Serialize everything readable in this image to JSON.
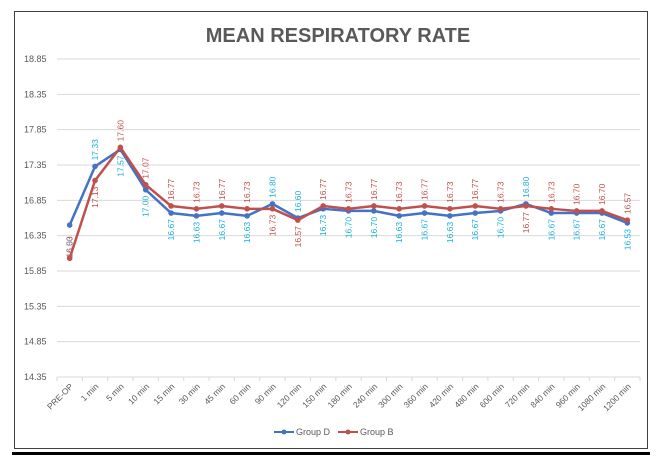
{
  "chart_data": {
    "type": "line",
    "title": "MEAN RESPIRATORY RATE",
    "xlabel": "",
    "ylabel": "",
    "categories": [
      "PRE-OP",
      "1 min",
      "5 min",
      "10 min",
      "15 min",
      "30 min",
      "45 min",
      "60 min",
      "90 min",
      "120 min",
      "150 min",
      "180 min",
      "240 min",
      "300 min",
      "360 min",
      "420 min",
      "480 min",
      "600 min",
      "720 min",
      "840 min",
      "960 min",
      "1080 min",
      "1200 min"
    ],
    "yticks": [
      "18.85",
      "18.35",
      "17.85",
      "17.35",
      "16.85",
      "16.35",
      "15.85",
      "15.35",
      "14.85",
      "14.35"
    ],
    "ylim": [
      14.35,
      18.85
    ],
    "grid": true,
    "legend_position": "bottom",
    "series": [
      {
        "name": "Group D",
        "color": "#4472C4",
        "label_color": "#1AAFD8",
        "values": [
          16.5,
          17.33,
          17.57,
          17.0,
          16.67,
          16.63,
          16.67,
          16.63,
          16.8,
          16.6,
          16.73,
          16.7,
          16.7,
          16.63,
          16.67,
          16.63,
          16.67,
          16.7,
          16.8,
          16.67,
          16.67,
          16.67,
          16.53
        ],
        "labels": [
          "16.50",
          "17.33",
          "17.57",
          "17.00",
          "16.67",
          "16.63",
          "16.67",
          "16.63",
          "16.80",
          "16.60",
          "16.73",
          "16.70",
          "16.70",
          "16.63",
          "16.67",
          "16.63",
          "16.67",
          "16.70",
          "16.80",
          "16.67",
          "16.67",
          "16.67",
          "16.53"
        ]
      },
      {
        "name": "Group B",
        "color": "#C0504D",
        "label_color": "#C0504D",
        "values": [
          16.03,
          17.13,
          17.6,
          17.07,
          16.77,
          16.73,
          16.77,
          16.73,
          16.73,
          16.57,
          16.77,
          16.73,
          16.77,
          16.73,
          16.77,
          16.73,
          16.77,
          16.73,
          16.77,
          16.73,
          16.7,
          16.7,
          16.57
        ],
        "labels": [
          "16.03",
          "17.13",
          "17.60",
          "17.07",
          "16.77",
          "16.73",
          "16.77",
          "16.73",
          "16.73",
          "16.57",
          "16.77",
          "16.73",
          "16.77",
          "16.73",
          "16.77",
          "16.73",
          "16.77",
          "16.73",
          "16.77",
          "16.73",
          "16.70",
          "16.70",
          "16.57"
        ]
      }
    ]
  }
}
